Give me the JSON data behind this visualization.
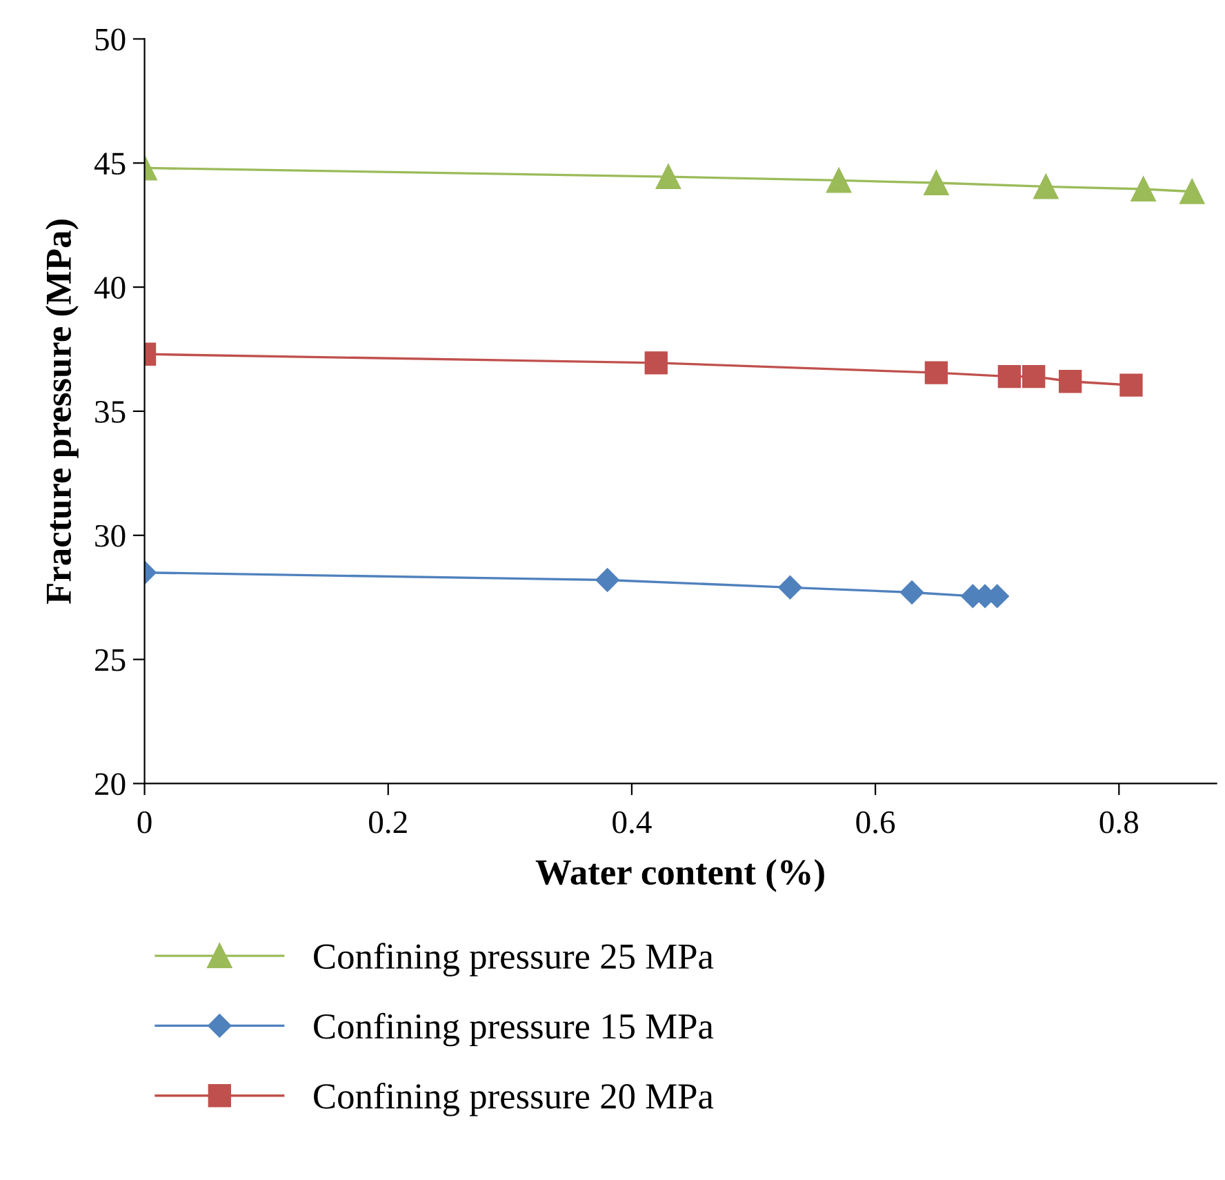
{
  "chart_data": {
    "type": "line",
    "xlabel": "Water content (%)",
    "ylabel": "Fracture pressure (MPa)",
    "xlim": [
      0,
      0.88
    ],
    "xticks": [
      0,
      0.2,
      0.4,
      0.6,
      0.8
    ],
    "ylim": [
      20,
      50
    ],
    "yticks": [
      20,
      25,
      30,
      35,
      40,
      45,
      50
    ],
    "grid": false,
    "legend": "bottom",
    "line_style": "solid",
    "series": [
      {
        "name": "Confining pressure 25 MPa",
        "color": "#9bbb59",
        "marker": "triangle",
        "x": [
          0,
          0.43,
          0.57,
          0.65,
          0.74,
          0.82,
          0.86
        ],
        "values": [
          44.8,
          44.45,
          44.3,
          44.2,
          44.05,
          43.95,
          43.85
        ]
      },
      {
        "name": "Confining pressure 15 MPa",
        "color": "#4f81bd",
        "marker": "diamond",
        "x": [
          0,
          0.38,
          0.53,
          0.63,
          0.68,
          0.69,
          0.7
        ],
        "values": [
          28.5,
          28.2,
          27.9,
          27.7,
          27.55,
          27.55,
          27.55
        ]
      },
      {
        "name": "Confining pressure 20 MPa",
        "color": "#c0504d",
        "marker": "square",
        "x": [
          0,
          0.42,
          0.65,
          0.71,
          0.73,
          0.76,
          0.81
        ],
        "values": [
          37.3,
          36.95,
          36.55,
          36.4,
          36.4,
          36.2,
          36.05
        ]
      }
    ]
  }
}
